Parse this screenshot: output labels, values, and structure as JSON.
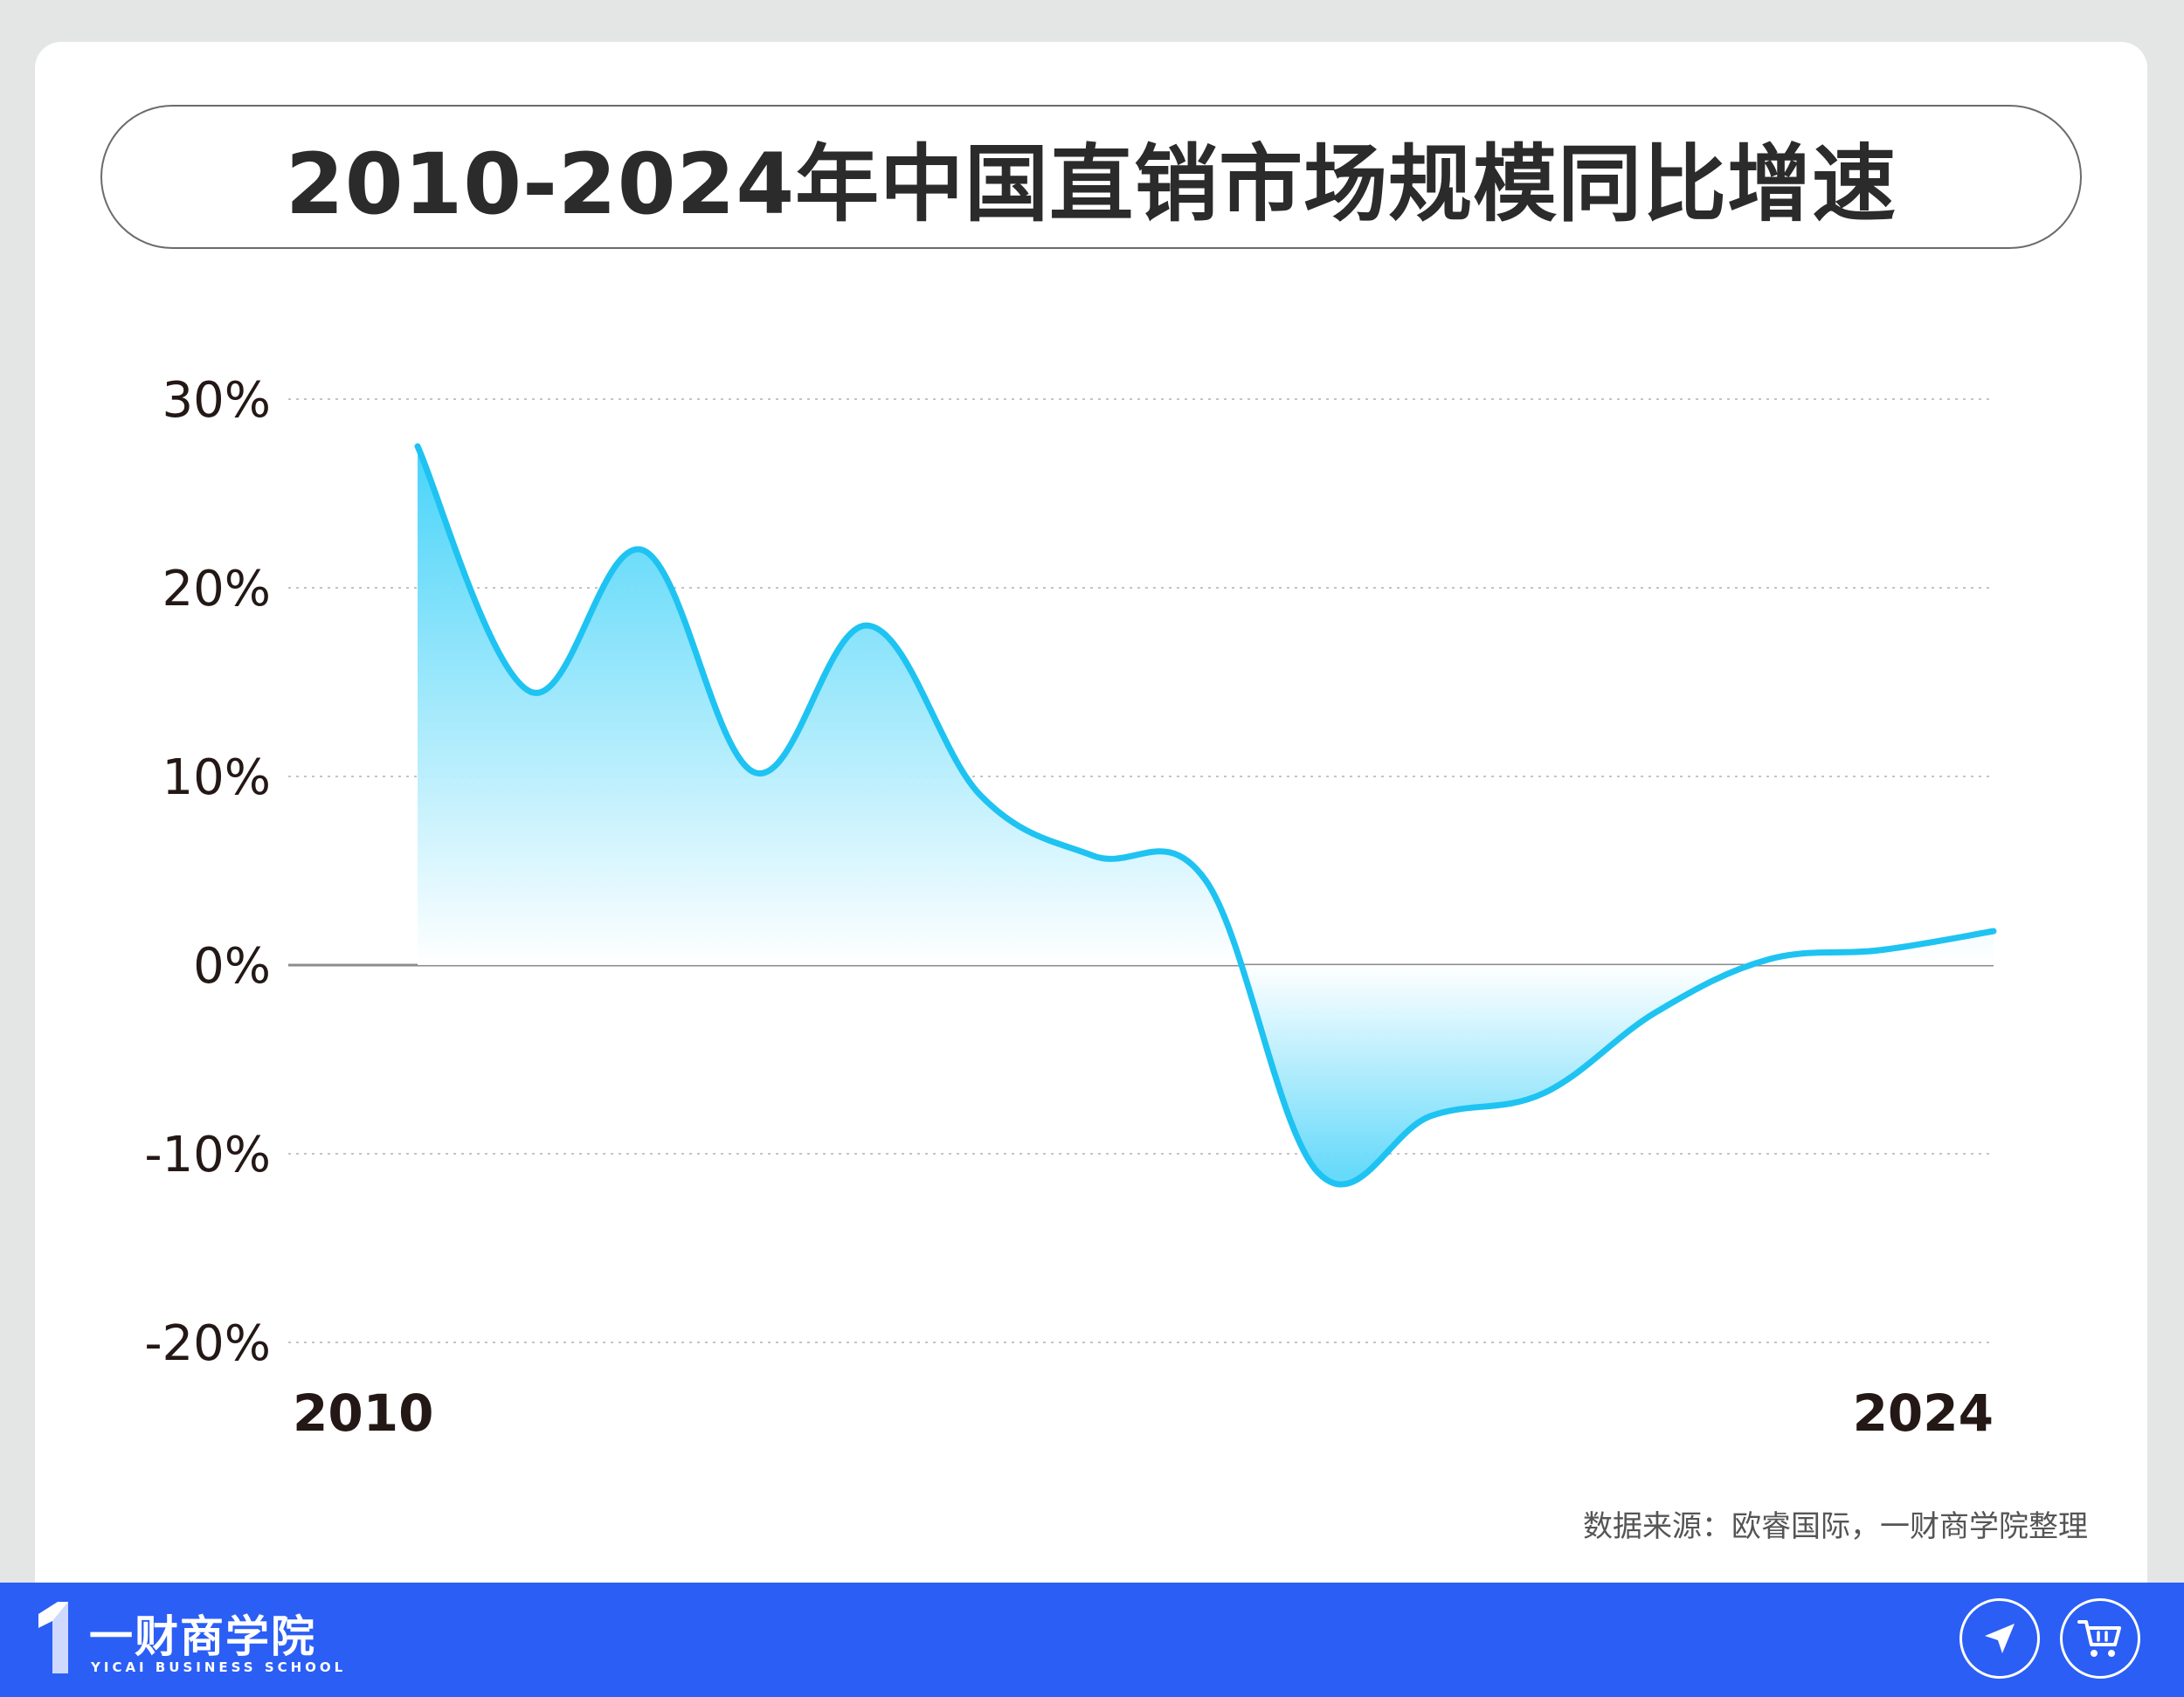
{
  "title": "2010-2024年中国直销市场规模同比增速",
  "source": "数据来源：欧睿国际，一财商学院整理",
  "brand": {
    "name_cn": "一财商学院",
    "name_en": "YICAI BUSINESS SCHOOL",
    "accent": "#2b5ef5"
  },
  "footer_icons": [
    "send-arrow-icon",
    "shopping-cart-icon"
  ],
  "chart_data": {
    "type": "area",
    "x": [
      2010,
      2011,
      2012,
      2013,
      2014,
      2015,
      2016,
      2017,
      2018,
      2019,
      2020,
      2021,
      2022,
      2023,
      2024
    ],
    "x_tick_labels": [
      "2010",
      "2024"
    ],
    "series": [
      {
        "values": [
          27.5,
          14.5,
          22,
          10.2,
          18,
          9,
          5.8,
          4.5,
          -11,
          -8,
          -6.8,
          -2.5,
          0.3,
          0.8,
          1.8
        ],
        "color": "#1ec3f2"
      }
    ],
    "y_ticks": [
      30,
      20,
      10,
      0,
      -10,
      -20
    ],
    "y_tick_labels": [
      "30%",
      "20%",
      "10%",
      "0%",
      "-10%",
      "-20%"
    ],
    "ylim": [
      -20,
      30
    ],
    "grid": true,
    "legend": "none"
  }
}
